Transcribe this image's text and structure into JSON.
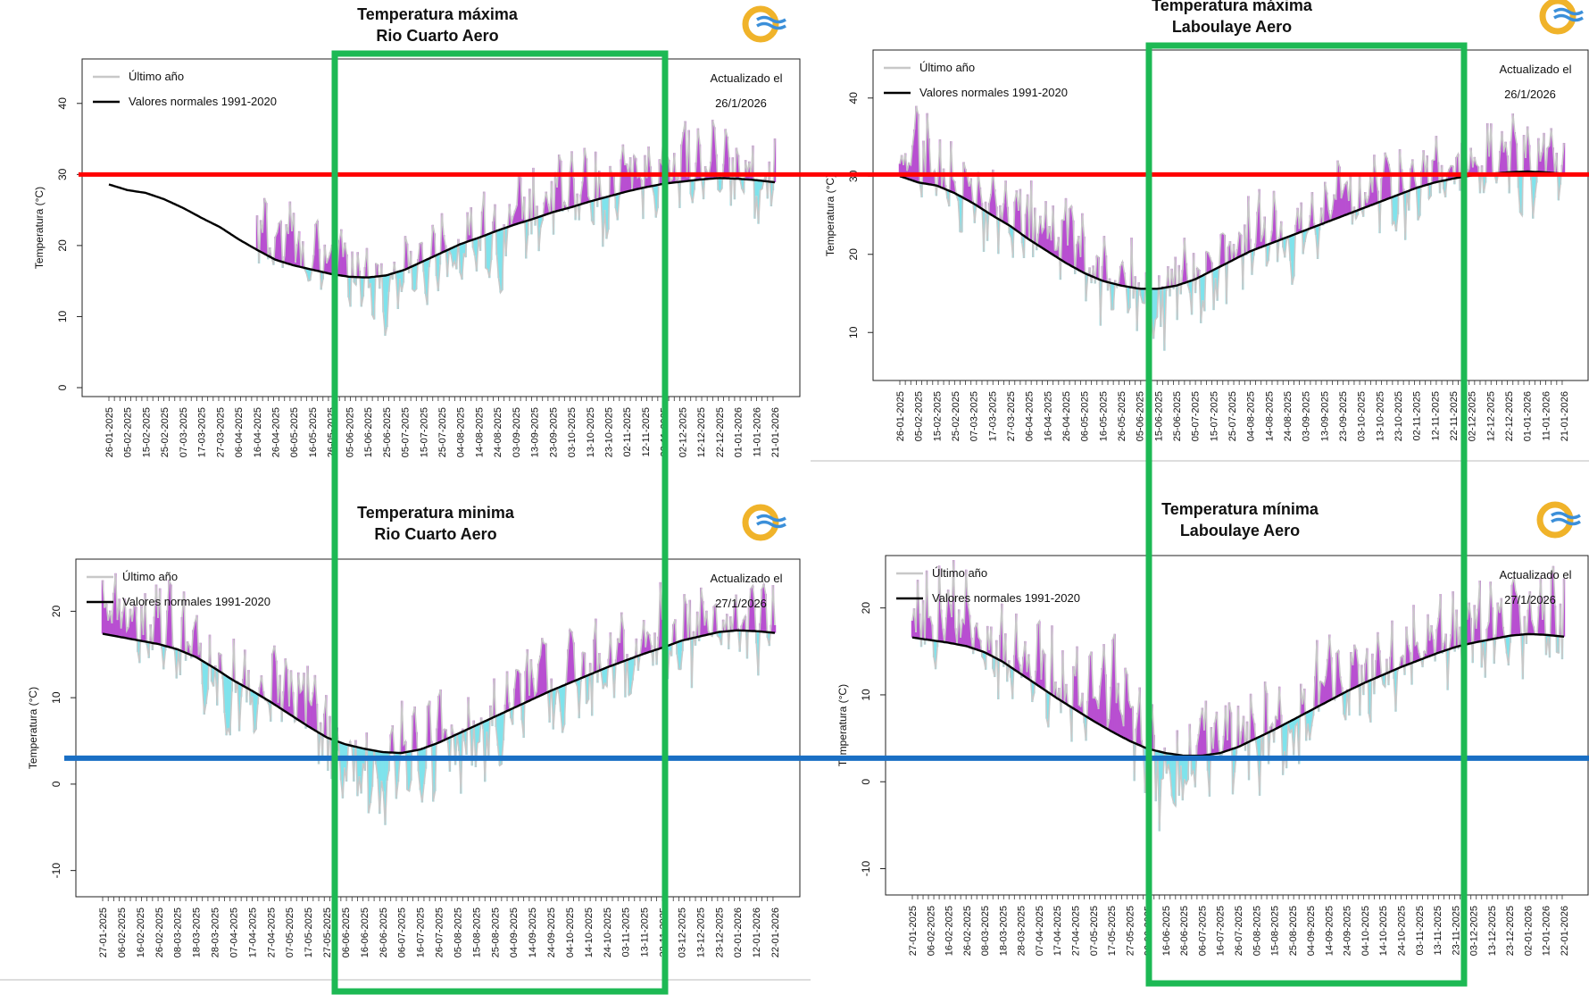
{
  "chart_data": [
    {
      "type": "area",
      "title": "Temperatura máxima",
      "subtitle": "Rio Cuarto Aero",
      "ylabel": "Temperatura (°C)",
      "xlabel": "",
      "ylim": [
        0,
        45
      ],
      "yticks": [
        0,
        10,
        20,
        30,
        40
      ],
      "legend": [
        "Último año",
        "Valores normales 1991-2020"
      ],
      "legend_position": "top-left",
      "updated_label": "Actualizado el",
      "updated_date": "26/1/2026",
      "x": [
        "26-01-2025",
        "05-02-2025",
        "15-02-2025",
        "25-02-2025",
        "07-03-2025",
        "17-03-2025",
        "27-03-2025",
        "06-04-2025",
        "16-04-2025",
        "26-04-2025",
        "06-05-2025",
        "16-05-2025",
        "26-05-2025",
        "05-06-2025",
        "15-06-2025",
        "25-06-2025",
        "05-07-2025",
        "15-07-2025",
        "25-07-2025",
        "04-08-2025",
        "14-08-2025",
        "24-08-2025",
        "03-09-2025",
        "13-09-2025",
        "23-09-2025",
        "03-10-2025",
        "13-10-2025",
        "23-10-2025",
        "02-11-2025",
        "12-11-2025",
        "22-11-2025",
        "02-12-2025",
        "12-12-2025",
        "22-12-2025",
        "01-01-2026",
        "11-01-2026",
        "21-01-2026"
      ],
      "series": [
        {
          "name": "Valores normales 1991-2020",
          "values": [
            28.6,
            27.8,
            27.4,
            26.5,
            25.3,
            23.9,
            22.6,
            20.9,
            19.4,
            18.0,
            17.2,
            16.6,
            16.0,
            15.6,
            15.5,
            15.8,
            16.6,
            17.8,
            19.0,
            20.2,
            21.1,
            22.1,
            23.0,
            23.8,
            24.7,
            25.4,
            26.2,
            26.9,
            27.6,
            28.2,
            28.7,
            29.0,
            29.3,
            29.5,
            29.4,
            29.2,
            28.9
          ]
        },
        {
          "name": "Último año",
          "values": [
            null,
            null,
            null,
            null,
            null,
            null,
            null,
            null,
            25.0,
            23.0,
            24.5,
            17.0,
            20.0,
            18.5,
            16.0,
            10.0,
            18.5,
            14.0,
            22.5,
            16.0,
            24.0,
            16.0,
            27.0,
            24.5,
            29.0,
            28.0,
            31.0,
            22.0,
            33.0,
            30.5,
            32.0,
            34.5,
            31.0,
            32.5,
            31.5,
            29.0,
            32.0
          ]
        }
      ]
    },
    {
      "type": "area",
      "title": "Temperatura máxima",
      "subtitle": "Laboulaye Aero",
      "ylabel": "Temperatura (°C)",
      "xlabel": "",
      "ylim": [
        5,
        45
      ],
      "yticks": [
        10,
        20,
        30,
        40
      ],
      "legend": [
        "Último año",
        "Valores normales 1991-2020"
      ],
      "legend_position": "top-left",
      "updated_label": "Actualizado el",
      "updated_date": "26/1/2026",
      "x": [
        "26-01-2025",
        "05-02-2025",
        "15-02-2025",
        "25-02-2025",
        "07-03-2025",
        "17-03-2025",
        "27-03-2025",
        "06-04-2025",
        "16-04-2025",
        "26-04-2025",
        "06-05-2025",
        "16-05-2025",
        "26-05-2025",
        "05-06-2025",
        "15-06-2025",
        "25-06-2025",
        "05-07-2025",
        "15-07-2025",
        "25-07-2025",
        "04-08-2025",
        "14-08-2025",
        "24-08-2025",
        "03-09-2025",
        "13-09-2025",
        "23-09-2025",
        "03-10-2025",
        "13-10-2025",
        "23-10-2025",
        "02-11-2025",
        "12-11-2025",
        "22-11-2025",
        "02-12-2025",
        "12-12-2025",
        "22-12-2025",
        "01-01-2026",
        "11-01-2026",
        "21-01-2026"
      ],
      "series": [
        {
          "name": "Valores normales 1991-2020",
          "values": [
            30.0,
            29.2,
            28.8,
            27.8,
            26.5,
            25.0,
            23.6,
            21.9,
            20.4,
            18.9,
            17.6,
            16.6,
            16.0,
            15.6,
            15.6,
            16.0,
            16.8,
            18.0,
            19.2,
            20.4,
            21.3,
            22.2,
            23.1,
            24.0,
            24.9,
            25.8,
            26.7,
            27.6,
            28.5,
            29.2,
            29.7,
            30.1,
            30.3,
            30.5,
            30.6,
            30.5,
            30.3
          ]
        },
        {
          "name": "Último año",
          "values": [
            34.0,
            36.5,
            31.0,
            33.0,
            26.0,
            24.0,
            22.0,
            25.0,
            23.5,
            26.0,
            21.0,
            18.0,
            19.0,
            15.0,
            11.0,
            18.5,
            14.0,
            18.0,
            21.0,
            22.5,
            24.0,
            19.0,
            27.0,
            25.0,
            30.0,
            24.0,
            31.5,
            26.0,
            30.0,
            31.0,
            33.0,
            33.0,
            34.0,
            35.0,
            31.0,
            34.0,
            31.0
          ]
        }
      ]
    },
    {
      "type": "area",
      "title": "Temperatura minima",
      "subtitle": "Rio Cuarto Aero",
      "ylabel": "Temperatura (°C)",
      "xlabel": "",
      "ylim": [
        -12,
        25
      ],
      "yticks": [
        -10,
        0,
        10,
        20
      ],
      "legend": [
        "Último año",
        "Valores normales 1991-2020"
      ],
      "legend_position": "top-left",
      "updated_label": "Actualizado el",
      "updated_date": "27/1/2026",
      "x": [
        "27-01-2025",
        "06-02-2025",
        "16-02-2025",
        "26-02-2025",
        "08-03-2025",
        "18-03-2025",
        "28-03-2025",
        "07-04-2025",
        "17-04-2025",
        "27-04-2025",
        "07-05-2025",
        "17-05-2025",
        "27-05-2025",
        "06-06-2025",
        "16-06-2025",
        "26-06-2025",
        "06-07-2025",
        "16-07-2025",
        "26-07-2025",
        "05-08-2025",
        "15-08-2025",
        "25-08-2025",
        "04-09-2025",
        "14-09-2025",
        "24-09-2025",
        "04-10-2025",
        "14-10-2025",
        "24-10-2025",
        "03-11-2025",
        "13-11-2025",
        "23-11-2025",
        "03-12-2025",
        "13-12-2025",
        "23-12-2025",
        "02-01-2026",
        "12-01-2026",
        "22-01-2026"
      ],
      "series": [
        {
          "name": "Valores normales 1991-2020",
          "values": [
            17.4,
            17.0,
            16.6,
            16.2,
            15.6,
            14.7,
            13.4,
            12.0,
            10.8,
            9.5,
            8.1,
            6.7,
            5.4,
            4.6,
            4.1,
            3.7,
            3.6,
            4.0,
            4.8,
            5.8,
            6.8,
            7.8,
            8.8,
            9.8,
            10.8,
            11.7,
            12.6,
            13.5,
            14.3,
            15.1,
            15.8,
            16.6,
            17.1,
            17.6,
            17.8,
            17.7,
            17.5
          ]
        },
        {
          "name": "Último año",
          "values": [
            20.5,
            23.0,
            21.0,
            20.0,
            17.0,
            14.0,
            11.0,
            10.0,
            11.5,
            12.0,
            14.0,
            15.0,
            6.0,
            2.0,
            0.0,
            -3.0,
            7.0,
            0.0,
            6.0,
            2.0,
            6.0,
            5.0,
            10.0,
            16.0,
            12.0,
            13.0,
            12.0,
            14.5,
            13.0,
            16.0,
            19.0,
            18.0,
            19.5,
            21.0,
            17.5,
            19.5,
            21.0
          ]
        }
      ]
    },
    {
      "type": "area",
      "title": "Temperatura mínima",
      "subtitle": "Laboulaye Aero",
      "ylabel": "Temperatura (°C)",
      "xlabel": "",
      "ylim": [
        -12,
        25
      ],
      "yticks": [
        -10,
        0,
        10,
        20
      ],
      "legend": [
        "Último año",
        "Valores normales 1991-2020"
      ],
      "legend_position": "top-left",
      "updated_label": "Actualizado el",
      "updated_date": "27/1/2026",
      "x": [
        "27-01-2025",
        "06-02-2025",
        "16-02-2025",
        "26-02-2025",
        "08-03-2025",
        "18-03-2025",
        "28-03-2025",
        "07-04-2025",
        "17-04-2025",
        "27-04-2025",
        "07-05-2025",
        "17-05-2025",
        "27-05-2025",
        "06-06-2025",
        "16-06-2025",
        "26-06-2025",
        "06-07-2025",
        "16-07-2025",
        "26-07-2025",
        "05-08-2025",
        "15-08-2025",
        "25-08-2025",
        "04-09-2025",
        "14-09-2025",
        "24-09-2025",
        "04-10-2025",
        "14-10-2025",
        "24-10-2025",
        "03-11-2025",
        "13-11-2025",
        "23-11-2025",
        "03-12-2025",
        "13-12-2025",
        "23-12-2025",
        "02-01-2026",
        "12-01-2026",
        "22-01-2026"
      ],
      "series": [
        {
          "name": "Valores normales 1991-2020",
          "values": [
            16.6,
            16.3,
            16.0,
            15.6,
            14.9,
            13.8,
            12.4,
            11.0,
            9.6,
            8.3,
            7.0,
            5.8,
            4.7,
            3.8,
            3.3,
            3.0,
            3.0,
            3.3,
            4.0,
            5.0,
            6.0,
            7.1,
            8.2,
            9.3,
            10.4,
            11.4,
            12.3,
            13.2,
            14.0,
            14.8,
            15.5,
            16.0,
            16.4,
            16.8,
            17.0,
            16.9,
            16.7
          ]
        },
        {
          "name": "Último año",
          "values": [
            19.0,
            21.0,
            24.0,
            22.0,
            16.0,
            14.0,
            12.0,
            16.0,
            12.0,
            14.0,
            11.0,
            17.0,
            10.0,
            2.0,
            -2.0,
            -5.0,
            8.0,
            3.0,
            7.0,
            4.0,
            6.0,
            2.0,
            10.0,
            17.0,
            12.0,
            13.0,
            14.0,
            16.0,
            15.0,
            17.0,
            19.0,
            18.5,
            20.0,
            21.0,
            18.0,
            19.0,
            20.0
          ]
        }
      ]
    }
  ],
  "colors": {
    "above": "#b84fd1",
    "below": "#7fe3ec",
    "observed": "#c8c8c8",
    "normal": "#000000",
    "highlight_box": "#1db954",
    "max_reference": "#ff0000",
    "min_reference": "#1a6fc4"
  },
  "reference_lines": {
    "max_celsius": 30,
    "min_celsius": 3
  },
  "logo": {
    "name": "smn-logo-icon"
  }
}
